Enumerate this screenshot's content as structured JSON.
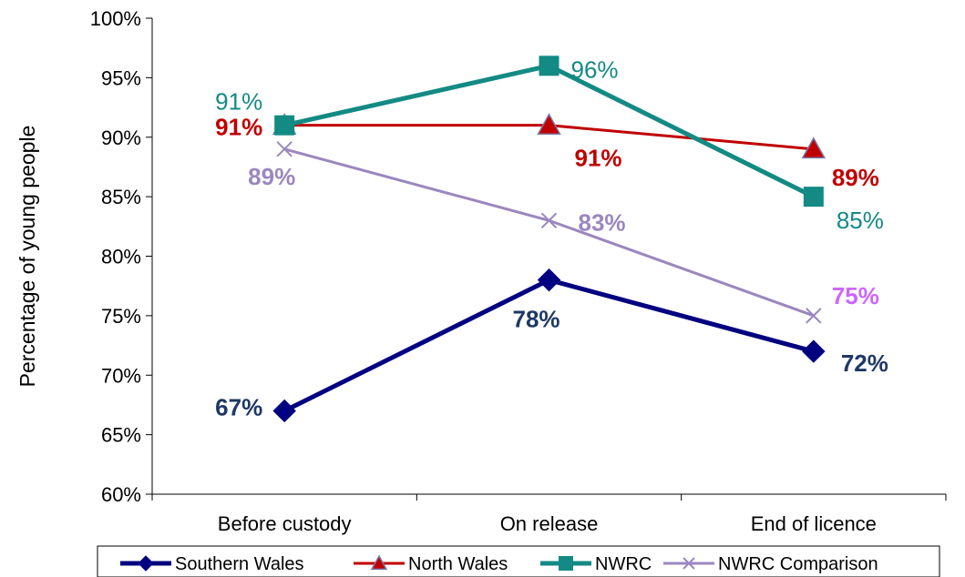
{
  "chart_data": {
    "type": "line",
    "categories": [
      "Before custody",
      "On release",
      "End of licence"
    ],
    "series": [
      {
        "name": "Southern Wales",
        "values": [
          67,
          78,
          72
        ],
        "color": "#000080",
        "label_color": "#1F3864",
        "label_bold": true,
        "marker": "diamond",
        "labels": [
          "67%",
          "78%",
          "72%"
        ]
      },
      {
        "name": "North Wales",
        "values": [
          91,
          91,
          89
        ],
        "color": "#C00000",
        "label_color": "#C00000",
        "label_bold": true,
        "marker": "triangle",
        "labels": [
          "91%",
          "91%",
          "89%"
        ]
      },
      {
        "name": "NWRC",
        "values": [
          91,
          96,
          85
        ],
        "color": "#138A84",
        "label_color": "#138A84",
        "label_bold": false,
        "marker": "square",
        "labels": [
          "91%",
          "96%",
          "85%"
        ]
      },
      {
        "name": "NWRC Comparison",
        "values": [
          89,
          83,
          75
        ],
        "color": "#9B87BE",
        "label_color": "#9B87BE",
        "label_bold": true,
        "marker": "x",
        "labels": [
          "89%",
          "83%",
          "75%"
        ],
        "label_colors": [
          "#9B87BE",
          "#9B87BE",
          "#CC66FF"
        ]
      }
    ],
    "y_ticks": [
      "60%",
      "65%",
      "70%",
      "75%",
      "80%",
      "85%",
      "90%",
      "95%",
      "100%"
    ],
    "ylim": [
      60,
      100
    ],
    "ylabel": "Percentage of young people",
    "xlabel": "",
    "title": "",
    "grid": false,
    "legend_position": "bottom"
  }
}
